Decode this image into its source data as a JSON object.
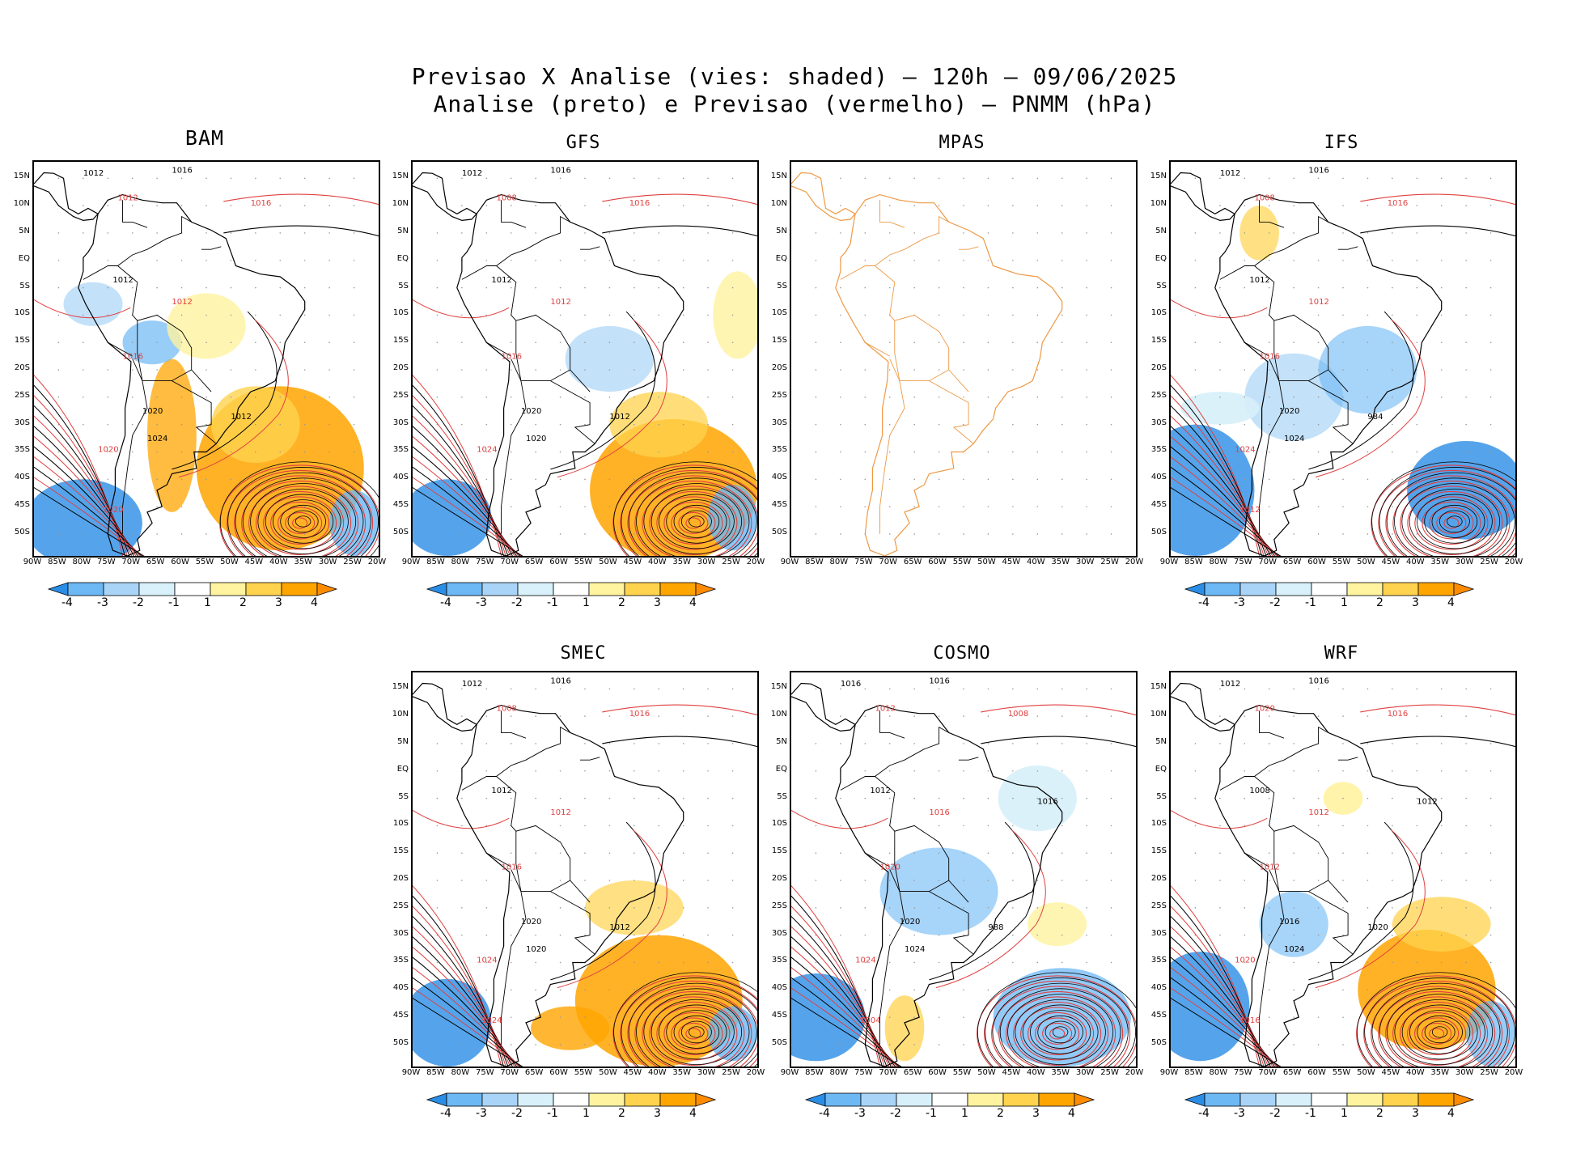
{
  "header": {
    "line1": "Previsao X Analise (vies: shaded) – 120h – 09/06/2025",
    "line2": "Analise (preto) e Previsao (vermelho) – PNMM (hPa)"
  },
  "lat_labels": [
    "15N",
    "10N",
    "5N",
    "EQ",
    "5S",
    "10S",
    "15S",
    "20S",
    "25S",
    "30S",
    "35S",
    "40S",
    "45S",
    "50S"
  ],
  "lon_labels": [
    "90W",
    "85W",
    "80W",
    "75W",
    "70W",
    "65W",
    "60W",
    "55W",
    "50W",
    "45W",
    "40W",
    "35W",
    "30W",
    "25W",
    "20W"
  ],
  "colorbar": {
    "labels": [
      "-4",
      "-3",
      "-2",
      "-1",
      "1",
      "2",
      "3",
      "4"
    ],
    "colors": [
      "#2a8de6",
      "#6cb8f5",
      "#a9d4f7",
      "#d7f0fa",
      "#ffffff",
      "#fff3a0",
      "#ffd34d",
      "#ffa500",
      "#ff8c00"
    ]
  },
  "colors": {
    "analysis": "#000000",
    "forecast": "#e04040",
    "coast_mpas": "#ee9944"
  },
  "panels": [
    {
      "id": "bam",
      "title": "BAM",
      "has_data": true,
      "labels": [
        "1012",
        "1016",
        "1016",
        "1012",
        "1012",
        "1012",
        "1016",
        "1020",
        "1020",
        "1024",
        "1012",
        "1020"
      ]
    },
    {
      "id": "gfs",
      "title": "GFS",
      "has_data": true,
      "labels": [
        "1012",
        "1016",
        "1016",
        "1008",
        "1012",
        "1012",
        "1016",
        "1020",
        "1024",
        "1020",
        "1012"
      ]
    },
    {
      "id": "mpas",
      "title": "MPAS",
      "has_data": false,
      "labels": []
    },
    {
      "id": "ifs",
      "title": "IFS",
      "has_data": true,
      "labels": [
        "1012",
        "1016",
        "1016",
        "1008",
        "1012",
        "1012",
        "1016",
        "1020",
        "1024",
        "1024",
        "984",
        "1012"
      ]
    },
    {
      "id": "smec",
      "title": "SMEC",
      "has_data": true,
      "labels": [
        "1012",
        "1016",
        "1016",
        "1008",
        "1012",
        "1012",
        "1016",
        "1020",
        "1024",
        "1020",
        "1012",
        "1024"
      ]
    },
    {
      "id": "cosmo",
      "title": "COSMO",
      "has_data": true,
      "labels": [
        "1016",
        "1016",
        "1008",
        "1012",
        "1012",
        "1016",
        "1020",
        "1020",
        "1024",
        "1024",
        "988",
        "1004",
        "1016"
      ]
    },
    {
      "id": "wrf",
      "title": "WRF",
      "has_data": true,
      "labels": [
        "1012",
        "1016",
        "1016",
        "1020",
        "1008",
        "1012",
        "1012",
        "1016",
        "1020",
        "1024",
        "1020",
        "1016",
        "1012"
      ]
    }
  ]
}
